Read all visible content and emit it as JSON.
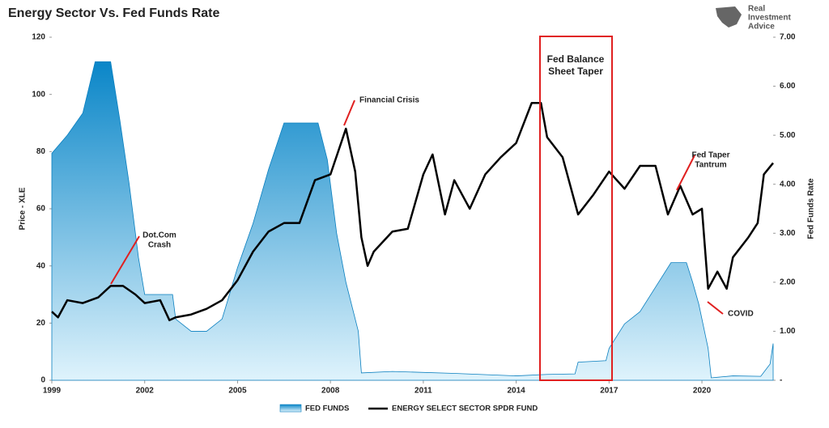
{
  "chart_data": {
    "type": "line",
    "title": "Energy Sector Vs. Fed Funds Rate",
    "logo": [
      "Real",
      "Investment",
      "Advice"
    ],
    "ylabel": "Price - XLE",
    "y2label": "Fed Funds Rate",
    "xlim": [
      1999,
      2022.3
    ],
    "xticks": [
      1999,
      2002,
      2005,
      2008,
      2011,
      2014,
      2017,
      2020
    ],
    "ylim": [
      0,
      120
    ],
    "yticks": [
      0,
      20,
      40,
      60,
      80,
      100,
      120
    ],
    "y2lim": [
      0,
      7
    ],
    "y2ticks": [
      {
        "value": 0,
        "label": "-"
      },
      {
        "value": 1,
        "label": "1.00"
      },
      {
        "value": 2,
        "label": "2.00"
      },
      {
        "value": 3,
        "label": "3.00"
      },
      {
        "value": 4,
        "label": "4.00"
      },
      {
        "value": 5,
        "label": "5.00"
      },
      {
        "value": 6,
        "label": "6.00"
      },
      {
        "value": 7,
        "label": "7.00"
      }
    ],
    "series": [
      {
        "name": "FED FUNDS",
        "type": "area",
        "axis": "y2",
        "color": "#1aa0e0",
        "x": [
          1999.0,
          1999.5,
          2000.0,
          2000.4,
          2000.9,
          2001.2,
          2001.5,
          2001.8,
          2002.0,
          2002.9,
          2003.0,
          2003.5,
          2004.0,
          2004.5,
          2005.0,
          2005.5,
          2006.0,
          2006.5,
          2007.6,
          2007.9,
          2008.2,
          2008.5,
          2008.9,
          2009.0,
          2010.0,
          2012.0,
          2014.0,
          2015.0,
          2015.9,
          2016.0,
          2016.9,
          2017.0,
          2017.5,
          2018.0,
          2018.5,
          2019.0,
          2019.5,
          2019.7,
          2019.9,
          2020.2,
          2020.3,
          2021.0,
          2021.9,
          2022.2,
          2022.3
        ],
        "values": [
          4.63,
          5.0,
          5.45,
          6.5,
          6.5,
          5.3,
          4.0,
          2.5,
          1.75,
          1.75,
          1.25,
          1.0,
          1.0,
          1.25,
          2.3,
          3.2,
          4.3,
          5.25,
          5.25,
          4.5,
          3.0,
          2.0,
          1.0,
          0.15,
          0.18,
          0.14,
          0.09,
          0.12,
          0.13,
          0.37,
          0.4,
          0.65,
          1.15,
          1.4,
          1.9,
          2.4,
          2.4,
          2.0,
          1.55,
          0.65,
          0.05,
          0.09,
          0.08,
          0.33,
          0.75
        ]
      },
      {
        "name": "ENERGY SELECT SECTOR SPDR FUND",
        "type": "line",
        "axis": "y",
        "color": "#000000",
        "x": [
          1999.0,
          1999.2,
          1999.5,
          2000.0,
          2000.5,
          2000.9,
          2001.3,
          2001.7,
          2002.0,
          2002.5,
          2002.8,
          2003.0,
          2003.5,
          2004.0,
          2004.5,
          2005.0,
          2005.5,
          2006.0,
          2006.5,
          2007.0,
          2007.5,
          2008.0,
          2008.5,
          2008.8,
          2009.0,
          2009.2,
          2009.4,
          2010.0,
          2010.5,
          2011.0,
          2011.3,
          2011.7,
          2012.0,
          2012.5,
          2013.0,
          2013.5,
          2014.0,
          2014.5,
          2014.8,
          2015.0,
          2015.5,
          2016.0,
          2016.5,
          2017.0,
          2017.5,
          2018.0,
          2018.5,
          2018.9,
          2019.3,
          2019.7,
          2020.0,
          2020.2,
          2020.5,
          2020.8,
          2021.0,
          2021.5,
          2021.8,
          2022.0,
          2022.3
        ],
        "values": [
          24,
          22,
          28,
          27,
          29,
          33,
          33,
          30,
          27,
          28,
          21,
          22,
          23,
          25,
          28,
          35,
          45,
          52,
          55,
          55,
          70,
          72,
          88,
          73,
          50,
          40,
          45,
          52,
          53,
          72,
          79,
          58,
          70,
          60,
          72,
          78,
          83,
          97,
          97,
          85,
          78,
          58,
          65,
          73,
          67,
          75,
          75,
          58,
          68,
          58,
          60,
          32,
          38,
          32,
          43,
          50,
          55,
          72,
          76
        ]
      }
    ],
    "annotations": [
      {
        "lines": [
          "Dot.Com",
          "Crash"
        ]
      },
      {
        "lines": [
          "Financial Crisis"
        ]
      },
      {
        "lines": [
          "Fed Balance",
          "Sheet Taper"
        ]
      },
      {
        "lines": [
          "Fed Taper",
          "Tantrum"
        ]
      },
      {
        "lines": [
          "COVID"
        ]
      }
    ]
  }
}
